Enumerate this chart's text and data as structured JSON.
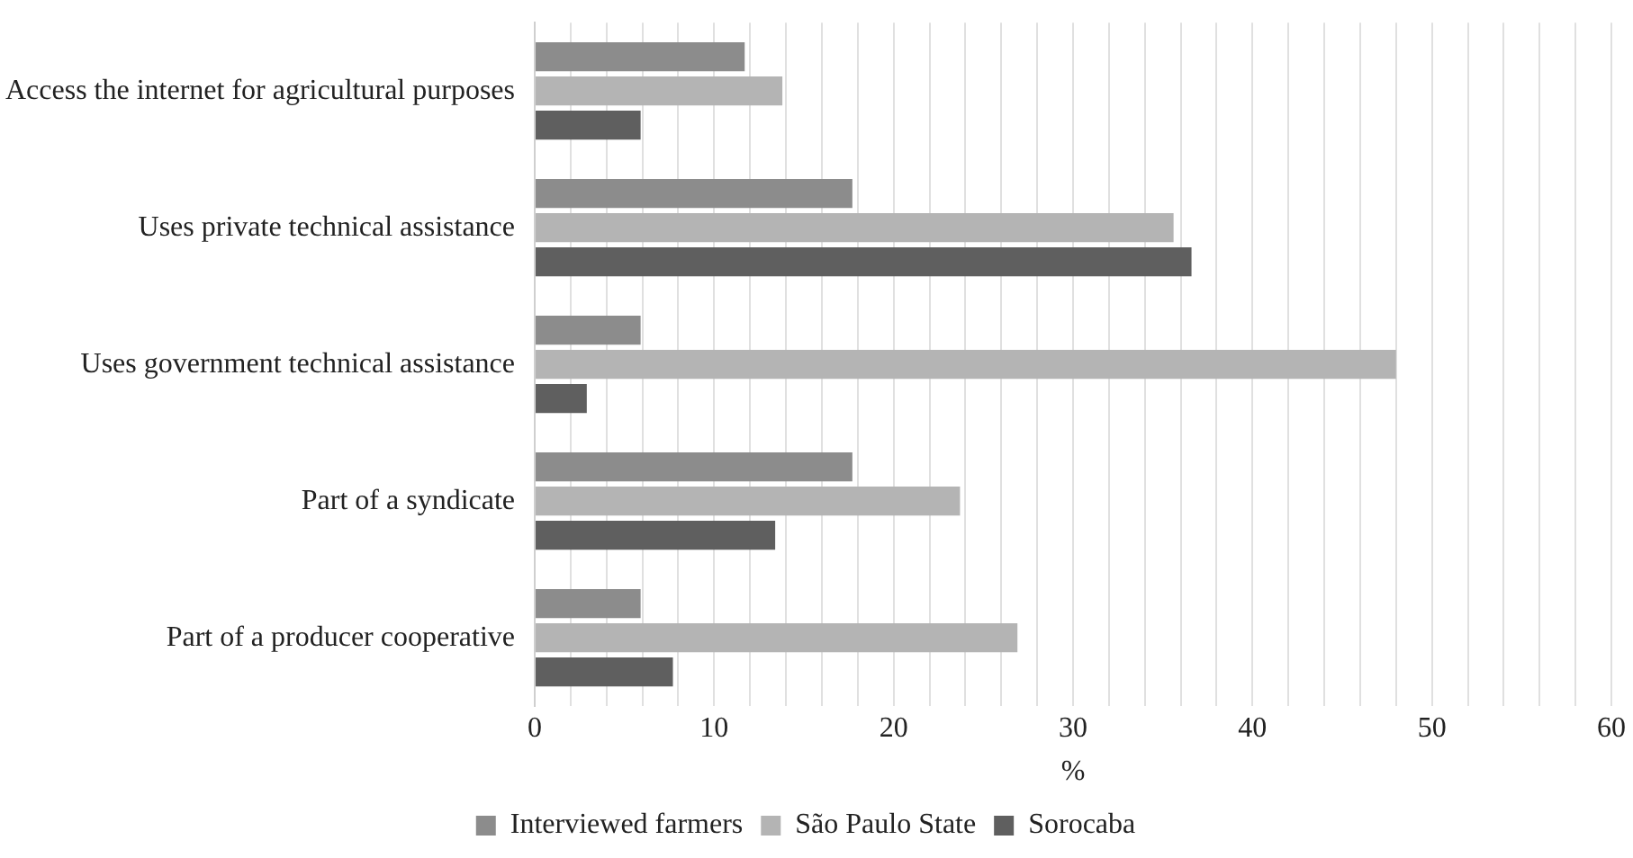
{
  "chart_data": {
    "type": "bar",
    "orientation": "horizontal",
    "xlabel": "%",
    "categories": [
      "Access the internet for agricultural purposes",
      "Uses private technical assistance",
      "Uses government technical assistance",
      "Part of a syndicate",
      "Part of a producer cooperative"
    ],
    "series": [
      {
        "name": "Interviewed farmers",
        "color": "#8c8c8c",
        "values": [
          11.7,
          17.7,
          5.9,
          17.7,
          5.9
        ]
      },
      {
        "name": "São Paulo State",
        "color": "#b4b4b4",
        "values": [
          13.8,
          35.6,
          48.0,
          23.7,
          26.9
        ]
      },
      {
        "name": "Sorocaba",
        "color": "#5f5f5f",
        "values": [
          5.9,
          36.6,
          2.9,
          13.4,
          7.7
        ]
      }
    ],
    "xlim": [
      0,
      60
    ],
    "xticks": [
      0,
      {
        "value": 2,
        "label": null
      },
      {
        "value": 4,
        "label": null
      },
      {
        "value": 6,
        "label": null
      },
      {
        "value": 8,
        "label": null
      },
      10,
      {
        "value": 12,
        "label": null
      },
      {
        "value": 14,
        "label": null
      },
      {
        "value": 16,
        "label": null
      },
      {
        "value": 18,
        "label": null
      },
      20,
      {
        "value": 22,
        "label": null
      },
      {
        "value": 24,
        "label": null
      },
      {
        "value": 26,
        "label": null
      },
      {
        "value": 28,
        "label": null
      },
      30,
      {
        "value": 32,
        "label": null
      },
      {
        "value": 34,
        "label": null
      },
      {
        "value": 36,
        "label": null
      },
      {
        "value": 38,
        "label": null
      },
      40,
      {
        "value": 42,
        "label": null
      },
      {
        "value": 44,
        "label": null
      },
      {
        "value": 46,
        "label": null
      },
      {
        "value": 48,
        "label": null
      },
      50,
      {
        "value": 52,
        "label": null
      },
      {
        "value": 54,
        "label": null
      },
      {
        "value": 56,
        "label": null
      },
      {
        "value": 58,
        "label": null
      },
      60
    ],
    "grid": "x",
    "legend": "bottom"
  }
}
